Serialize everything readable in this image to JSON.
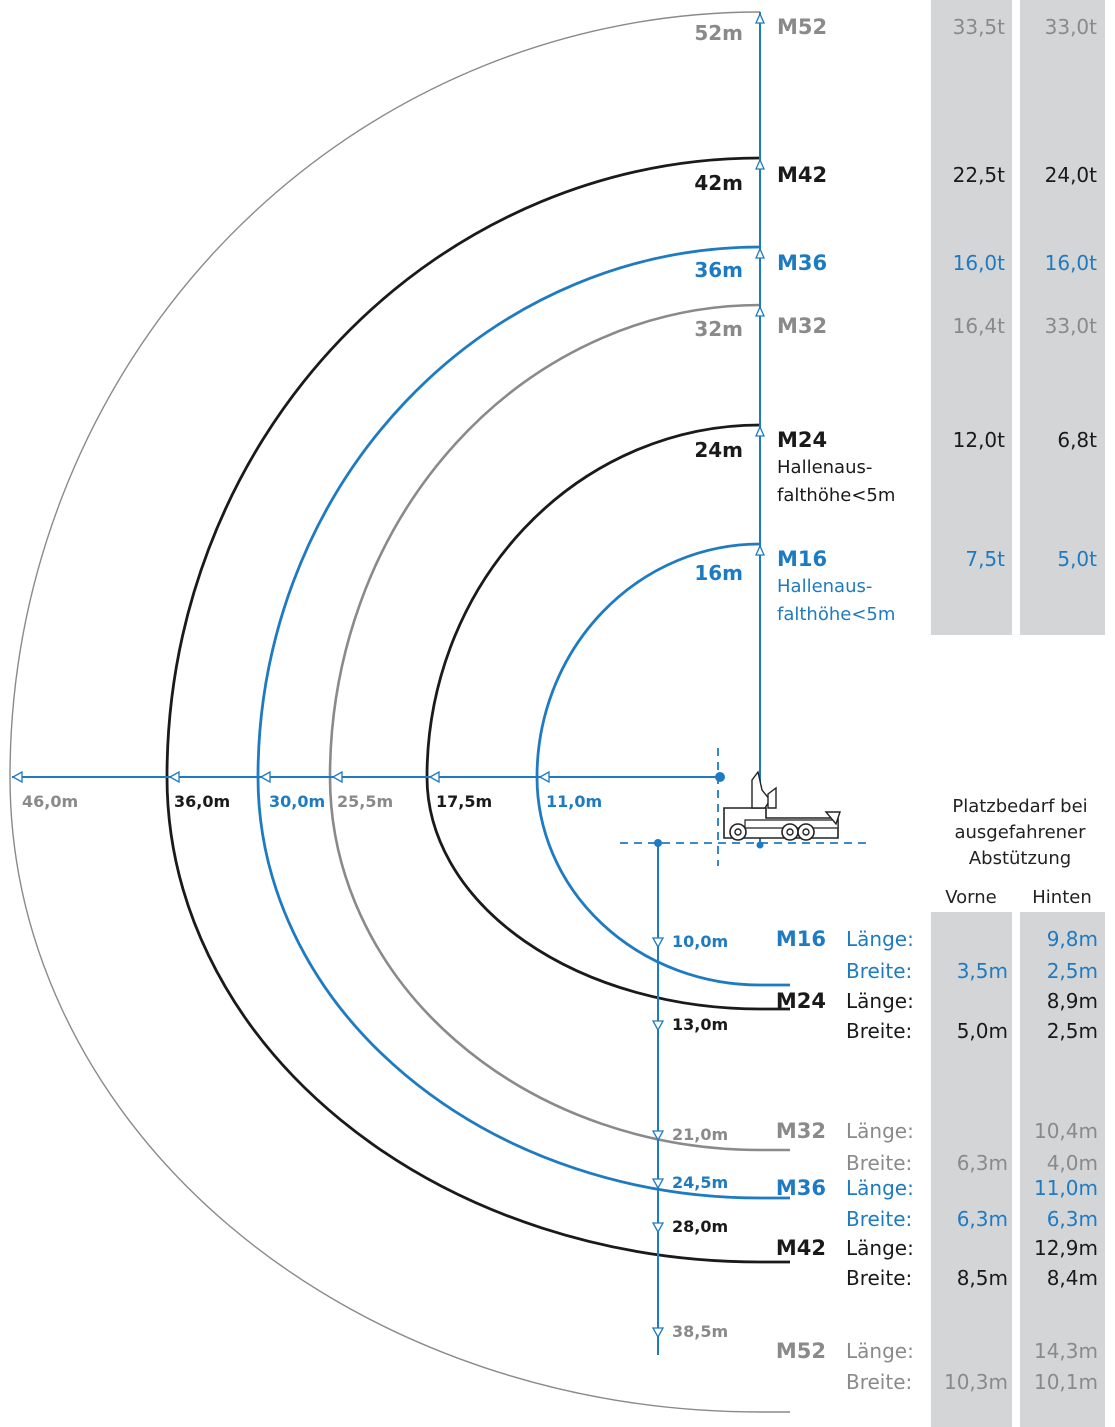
{
  "colors": {
    "blue": "#1e7bc1",
    "black": "#1a1a1a",
    "gray": "#8a8a8a",
    "panel": "#d4d5d7"
  },
  "models": [
    {
      "id": "M16",
      "color": "blue",
      "height": "16m",
      "reach": "11,0m",
      "depth": "10,0m",
      "note": [
        "Hallenaus-",
        "falthöhe<5m"
      ],
      "load_front": "7,5t",
      "load_back": "5,0t",
      "length_front": "",
      "length_back": "9,8m",
      "width_front": "3,5m",
      "width_back": "2,5m"
    },
    {
      "id": "M24",
      "color": "black",
      "height": "24m",
      "reach": "17,5m",
      "depth": "13,0m",
      "note": [
        "Hallenaus-",
        "falthöhe<5m"
      ],
      "load_front": "12,0t",
      "load_back": "6,8t",
      "length_front": "",
      "length_back": "8,9m",
      "width_front": "5,0m",
      "width_back": "2,5m"
    },
    {
      "id": "M32",
      "color": "gray",
      "height": "32m",
      "reach": "25,5m",
      "depth": "21,0m",
      "note": [],
      "load_front": "16,4t",
      "load_back": "33,0t",
      "length_front": "",
      "length_back": "10,4m",
      "width_front": "6,3m",
      "width_back": "4,0m"
    },
    {
      "id": "M36",
      "color": "blue",
      "height": "36m",
      "reach": "30,0m",
      "depth": "24,5m",
      "note": [],
      "load_front": "16,0t",
      "load_back": "16,0t",
      "length_front": "",
      "length_back": "11,0m",
      "width_front": "6,3m",
      "width_back": "6,3m"
    },
    {
      "id": "M42",
      "color": "black",
      "height": "42m",
      "reach": "36,0m",
      "depth": "28,0m",
      "note": [],
      "load_front": "22,5t",
      "load_back": "24,0t",
      "length_front": "",
      "length_back": "12,9m",
      "width_front": "8,5m",
      "width_back": "8,4m"
    },
    {
      "id": "M52",
      "color": "gray",
      "height": "52m",
      "reach": "46,0m",
      "depth": "38,5m",
      "note": [],
      "load_front": "33,5t",
      "load_back": "33,0t",
      "length_front": "",
      "length_back": "14,3m",
      "width_front": "10,3m",
      "width_back": "10,1m"
    }
  ],
  "labels": {
    "laenge": "Länge:",
    "breite": "Breite:",
    "outrigger_title": [
      "Platzbedarf bei",
      "ausgefahrener",
      "Abstützung"
    ],
    "col_front": "Vorne",
    "col_back": "Hinten"
  }
}
